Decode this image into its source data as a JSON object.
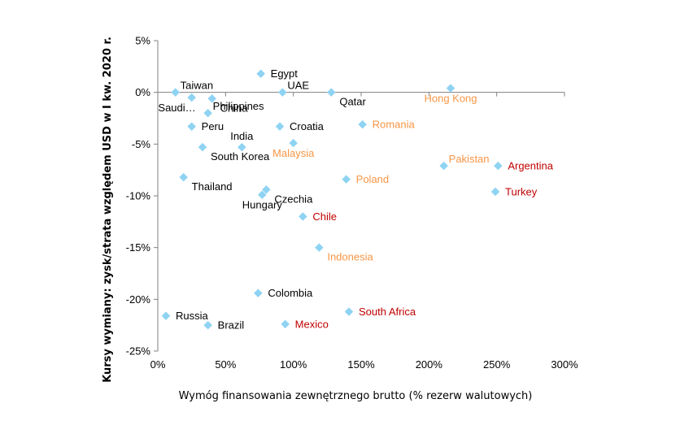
{
  "chart_data": {
    "type": "scatter",
    "title": "",
    "xlabel": "Wymóg finansowania zewnętrznego brutto (% rezerw walutowych)",
    "ylabel": "Kursy wymiany: zysk/strata względem USD w I kw. 2020 r.",
    "xlim": [
      0,
      300
    ],
    "ylim": [
      -25,
      5
    ],
    "x_ticks": [
      0,
      50,
      100,
      150,
      200,
      250,
      300
    ],
    "x_tick_labels": [
      "0%",
      "50%",
      "100%",
      "150%",
      "200%",
      "250%",
      "300%"
    ],
    "y_ticks": [
      5,
      0,
      -5,
      -10,
      -15,
      -20,
      -25
    ],
    "y_tick_labels": [
      "5%",
      "0%",
      "-5%",
      "-10%",
      "-15%",
      "-20%",
      "-25%"
    ],
    "marker_color": "#8fd3f3",
    "label_colors": {
      "black": "#000000",
      "orange": "#f79646",
      "red": "#c00000"
    },
    "points": [
      {
        "label": "Egypt",
        "x": 76,
        "y": 1.8,
        "color": "black",
        "pos": "right"
      },
      {
        "label": "UAE",
        "x": 92,
        "y": 0.0,
        "color": "black",
        "pos": "above-right"
      },
      {
        "label": "Qatar",
        "x": 128,
        "y": 0.0,
        "color": "black",
        "pos": "below-right"
      },
      {
        "label": "Hong Kong",
        "x": 216,
        "y": 0.4,
        "color": "orange",
        "pos": "below"
      },
      {
        "label": "Taiwan",
        "x": 13,
        "y": 0.0,
        "color": "black",
        "pos": "above-right"
      },
      {
        "label": "Saudi…",
        "x": 25,
        "y": -0.5,
        "color": "black",
        "pos": "below-left"
      },
      {
        "label": "China",
        "x": 40,
        "y": -0.6,
        "color": "black",
        "pos": "below-right"
      },
      {
        "label": "Philippines",
        "x": 37,
        "y": -2.0,
        "color": "black",
        "pos": "above-right"
      },
      {
        "label": "Peru",
        "x": 25,
        "y": -3.3,
        "color": "black",
        "pos": "right"
      },
      {
        "label": "India",
        "x": 62,
        "y": -5.3,
        "color": "black",
        "pos": "above"
      },
      {
        "label": "Croatia",
        "x": 90,
        "y": -3.3,
        "color": "black",
        "pos": "right"
      },
      {
        "label": "Romania",
        "x": 151,
        "y": -3.1,
        "color": "orange",
        "pos": "right"
      },
      {
        "label": "South Korea",
        "x": 33,
        "y": -5.3,
        "color": "black",
        "pos": "below-right"
      },
      {
        "label": "Malaysia",
        "x": 100,
        "y": -4.9,
        "color": "orange",
        "pos": "below"
      },
      {
        "label": "Pakistan",
        "x": 211,
        "y": -7.1,
        "color": "orange",
        "pos": "above-right"
      },
      {
        "label": "Argentina",
        "x": 251,
        "y": -7.1,
        "color": "red",
        "pos": "right"
      },
      {
        "label": "Thailand",
        "x": 19,
        "y": -8.2,
        "color": "black",
        "pos": "below-right"
      },
      {
        "label": "Poland",
        "x": 139,
        "y": -8.4,
        "color": "orange",
        "pos": "right"
      },
      {
        "label": "Turkey",
        "x": 249,
        "y": -9.6,
        "color": "red",
        "pos": "right"
      },
      {
        "label": "Czechia",
        "x": 80,
        "y": -9.4,
        "color": "black",
        "pos": "below-right"
      },
      {
        "label": "Hungary",
        "x": 77,
        "y": -9.9,
        "color": "black",
        "pos": "below"
      },
      {
        "label": "Chile",
        "x": 107,
        "y": -12.0,
        "color": "red",
        "pos": "right"
      },
      {
        "label": "Indonesia",
        "x": 119,
        "y": -15.0,
        "color": "orange",
        "pos": "below-right"
      },
      {
        "label": "Colombia",
        "x": 74,
        "y": -19.4,
        "color": "black",
        "pos": "right"
      },
      {
        "label": "Russia",
        "x": 6,
        "y": -21.6,
        "color": "black",
        "pos": "right"
      },
      {
        "label": "South Africa",
        "x": 141,
        "y": -21.2,
        "color": "red",
        "pos": "right"
      },
      {
        "label": "Brazil",
        "x": 37,
        "y": -22.5,
        "color": "black",
        "pos": "right"
      },
      {
        "label": "Mexico",
        "x": 94,
        "y": -22.4,
        "color": "red",
        "pos": "right"
      }
    ]
  }
}
